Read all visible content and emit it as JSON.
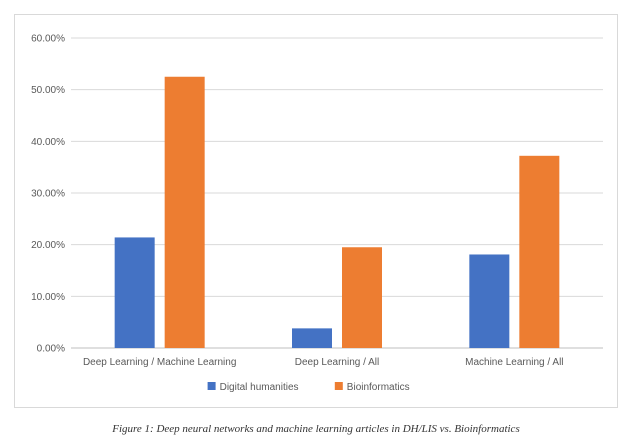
{
  "chart_data": {
    "type": "bar",
    "categories": [
      "Deep Learning / Machine Learning",
      "Deep Learning / All",
      "Machine Learning / All"
    ],
    "series": [
      {
        "name": "Digital humanities",
        "color": "#4472c4",
        "values": [
          21.4,
          3.8,
          18.1
        ]
      },
      {
        "name": "Bioinformatics",
        "color": "#ed7d31",
        "values": [
          52.5,
          19.5,
          37.2
        ]
      }
    ],
    "y_ticks": [
      "0.00%",
      "10.00%",
      "20.00%",
      "30.00%",
      "40.00%",
      "50.00%",
      "60.00%"
    ],
    "ylim": [
      0,
      60
    ],
    "grid": true,
    "legend_position": "bottom",
    "title": "",
    "xlabel": "",
    "ylabel": ""
  },
  "caption": "Figure 1: Deep neural networks and machine learning articles in DH/LIS vs. Bioinformatics"
}
